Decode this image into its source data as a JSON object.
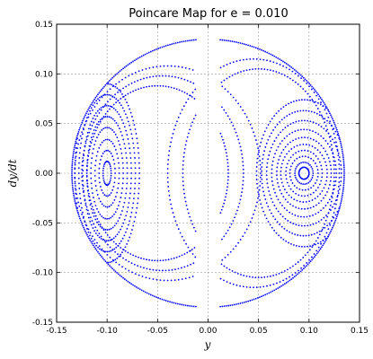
{
  "chart_data": {
    "type": "scatter",
    "title": "Poincare Map for e = 0.010",
    "xlabel": "y",
    "ylabel": "dy/dt",
    "xlim": [
      -0.15,
      0.15
    ],
    "ylim": [
      -0.15,
      0.15
    ],
    "xticks": [
      "-0.15",
      "-0.10",
      "-0.05",
      "0.00",
      "0.05",
      "0.10",
      "0.15"
    ],
    "yticks": [
      "-0.15",
      "-0.10",
      "-0.05",
      "0.00",
      "0.05",
      "0.10",
      "0.15"
    ],
    "grid": true,
    "point_color": "#0000ff",
    "boundary_radius": 0.135,
    "islands": [
      {
        "center": [
          -0.1,
          0.0
        ],
        "orbits": [
          {
            "rx": 0.004,
            "ry": 0.012
          },
          {
            "rx": 0.008,
            "ry": 0.023
          },
          {
            "rx": 0.012,
            "ry": 0.034
          },
          {
            "rx": 0.016,
            "ry": 0.046
          },
          {
            "rx": 0.02,
            "ry": 0.057
          },
          {
            "rx": 0.024,
            "ry": 0.068
          },
          {
            "rx": 0.028,
            "ry": 0.079
          },
          {
            "rx": 0.032,
            "ry": 0.09
          }
        ]
      },
      {
        "center": [
          0.095,
          0.0
        ],
        "orbits": [
          {
            "rx": 0.005,
            "ry": 0.006
          },
          {
            "rx": 0.009,
            "ry": 0.011
          },
          {
            "rx": 0.014,
            "ry": 0.017
          },
          {
            "rx": 0.018,
            "ry": 0.023
          },
          {
            "rx": 0.023,
            "ry": 0.029
          },
          {
            "rx": 0.027,
            "ry": 0.036
          },
          {
            "rx": 0.032,
            "ry": 0.044
          },
          {
            "rx": 0.037,
            "ry": 0.053
          },
          {
            "rx": 0.042,
            "ry": 0.063
          },
          {
            "rx": 0.047,
            "ry": 0.074
          }
        ]
      }
    ],
    "separatrix_orbits": [
      {
        "center": [
          -0.04,
          0.0
        ],
        "rx": 0.092,
        "ry": 0.108
      },
      {
        "center": [
          -0.045,
          0.0
        ],
        "rx": 0.08,
        "ry": 0.098
      },
      {
        "center": [
          -0.05,
          0.0
        ],
        "rx": 0.07,
        "ry": 0.088
      },
      {
        "center": [
          0.045,
          0.0
        ],
        "rx": 0.085,
        "ry": 0.115
      },
      {
        "center": [
          0.05,
          0.0
        ],
        "rx": 0.075,
        "ry": 0.105
      }
    ]
  }
}
